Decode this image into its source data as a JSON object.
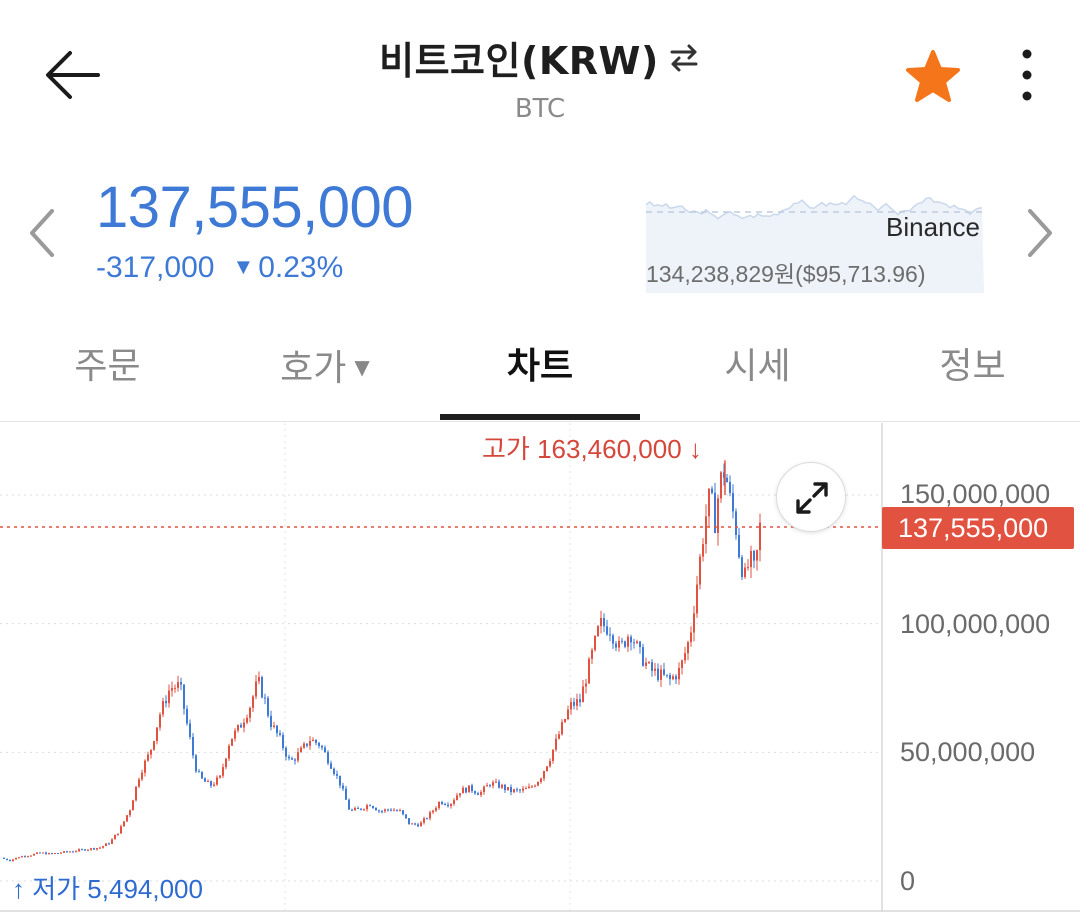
{
  "header": {
    "title": "비트코인(KRW)",
    "subtitle": "BTC",
    "icons": {
      "back": "back-arrow-icon",
      "swap": "swap-arrows-icon",
      "favorite": "star-icon",
      "more": "more-vertical-icon"
    },
    "favorite_color": "#f5761a"
  },
  "price": {
    "current": "137,555,000",
    "change": "-317,000",
    "change_direction": "down",
    "change_rate": "0.23%",
    "color": "#3e79d6"
  },
  "reference": {
    "exchange": "Binance",
    "price_text": "134,238,829원($95,713.96)"
  },
  "tabs": [
    {
      "label": "주문",
      "active": false
    },
    {
      "label": "호가",
      "active": false,
      "has_dropdown": true
    },
    {
      "label": "차트",
      "active": true
    },
    {
      "label": "시세",
      "active": false
    },
    {
      "label": "정보",
      "active": false
    }
  ],
  "chart": {
    "high_label": "고가 163,460,000",
    "low_label": "저가 5,494,000",
    "current_badge": "137,555,000",
    "y_ticks": [
      "150,000,000",
      "100,000,000",
      "50,000,000",
      "0"
    ],
    "up_color": "#e15241",
    "down_color": "#3e79d6"
  },
  "chart_data": {
    "type": "candlestick",
    "ylim": [
      0,
      175000000
    ],
    "y_ticks": [
      0,
      50000000,
      100000000,
      150000000
    ],
    "current_price": 137555000,
    "high": 163460000,
    "low": 5494000,
    "grid": true,
    "close_path": [
      [
        0,
        9000000
      ],
      [
        10,
        8000000
      ],
      [
        20,
        9500000
      ],
      [
        30,
        10000000
      ],
      [
        40,
        11000000
      ],
      [
        50,
        10500000
      ],
      [
        60,
        11000000
      ],
      [
        70,
        11500000
      ],
      [
        80,
        12000000
      ],
      [
        90,
        12500000
      ],
      [
        100,
        13000000
      ],
      [
        110,
        15000000
      ],
      [
        120,
        20000000
      ],
      [
        130,
        28000000
      ],
      [
        140,
        42000000
      ],
      [
        150,
        50000000
      ],
      [
        160,
        65000000
      ],
      [
        170,
        75000000
      ],
      [
        180,
        76000000
      ],
      [
        185,
        65000000
      ],
      [
        190,
        55000000
      ],
      [
        195,
        45000000
      ],
      [
        200,
        40000000
      ],
      [
        210,
        37000000
      ],
      [
        220,
        40000000
      ],
      [
        230,
        55000000
      ],
      [
        240,
        60000000
      ],
      [
        250,
        68000000
      ],
      [
        258,
        78000000
      ],
      [
        265,
        70000000
      ],
      [
        270,
        62000000
      ],
      [
        280,
        55000000
      ],
      [
        290,
        46000000
      ],
      [
        300,
        50000000
      ],
      [
        310,
        55000000
      ],
      [
        320,
        53000000
      ],
      [
        330,
        46000000
      ],
      [
        340,
        38000000
      ],
      [
        350,
        27000000
      ],
      [
        360,
        28000000
      ],
      [
        370,
        30000000
      ],
      [
        380,
        27000000
      ],
      [
        390,
        28000000
      ],
      [
        400,
        27000000
      ],
      [
        410,
        22000000
      ],
      [
        420,
        22000000
      ],
      [
        430,
        26000000
      ],
      [
        440,
        31000000
      ],
      [
        450,
        30000000
      ],
      [
        460,
        35000000
      ],
      [
        470,
        36000000
      ],
      [
        480,
        34000000
      ],
      [
        490,
        38000000
      ],
      [
        500,
        37000000
      ],
      [
        510,
        35000000
      ],
      [
        520,
        35000000
      ],
      [
        530,
        36000000
      ],
      [
        540,
        40000000
      ],
      [
        550,
        48000000
      ],
      [
        560,
        58000000
      ],
      [
        570,
        68000000
      ],
      [
        580,
        70000000
      ],
      [
        590,
        85000000
      ],
      [
        600,
        100000000
      ],
      [
        610,
        98000000
      ],
      [
        620,
        90000000
      ],
      [
        630,
        97000000
      ],
      [
        640,
        88000000
      ],
      [
        650,
        82000000
      ],
      [
        660,
        80000000
      ],
      [
        670,
        78000000
      ],
      [
        680,
        82000000
      ],
      [
        690,
        95000000
      ],
      [
        700,
        125000000
      ],
      [
        705,
        140000000
      ],
      [
        710,
        150000000
      ],
      [
        715,
        140000000
      ],
      [
        720,
        155000000
      ],
      [
        725,
        160000000
      ],
      [
        730,
        148000000
      ],
      [
        735,
        140000000
      ],
      [
        740,
        125000000
      ],
      [
        745,
        118000000
      ],
      [
        750,
        125000000
      ],
      [
        755,
        120000000
      ],
      [
        760,
        137555000
      ]
    ]
  }
}
